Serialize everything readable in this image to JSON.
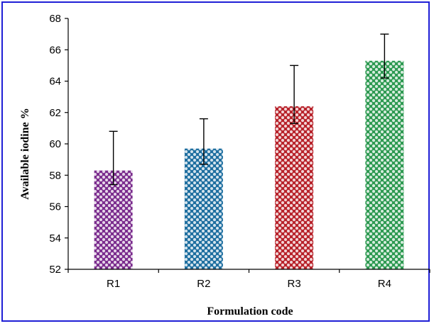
{
  "chart_data": {
    "type": "bar",
    "title": "",
    "xlabel": "Formulation code",
    "ylabel": "Available  iodine  %",
    "categories": [
      "R1",
      "R2",
      "R3",
      "R4"
    ],
    "values": [
      58.3,
      59.7,
      62.4,
      65.3
    ],
    "error_upper": [
      60.8,
      61.6,
      65.0,
      67.0
    ],
    "error_lower": [
      57.4,
      58.7,
      61.3,
      64.2
    ],
    "ylim": [
      52,
      68
    ],
    "yticks": [
      52,
      54,
      56,
      58,
      60,
      62,
      64,
      66,
      68
    ],
    "grid": false,
    "legend": "none",
    "bar_colors": [
      "#7b2d8e",
      "#1f6fa0",
      "#b8232b",
      "#2e9a52"
    ]
  }
}
